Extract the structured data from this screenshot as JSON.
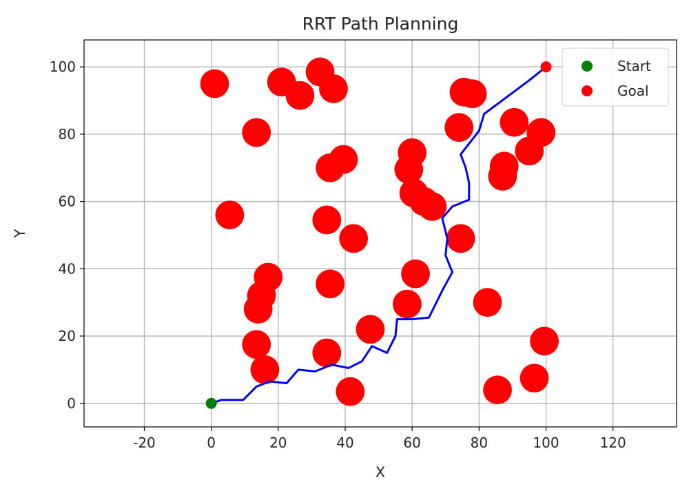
{
  "chart_data": {
    "type": "scatter",
    "title": "RRT Path Planning",
    "xlabel": "X",
    "ylabel": "Y",
    "xlim": [
      -38,
      139
    ],
    "ylim": [
      -7,
      108
    ],
    "xticks": [
      -20,
      0,
      20,
      40,
      60,
      80,
      100,
      120
    ],
    "yticks": [
      0,
      20,
      40,
      60,
      80,
      100
    ],
    "grid": true,
    "legend_position": "top-right",
    "colors": {
      "start": "#008000",
      "goal": "#ff0000",
      "obstacles": "#ff0000",
      "path": "#0000ff",
      "grid": "#b0b0b0"
    },
    "obstacles": {
      "radius": 4.3,
      "centers": [
        [
          1,
          95
        ],
        [
          21,
          95.5
        ],
        [
          26.5,
          91.5
        ],
        [
          32.5,
          98.5
        ],
        [
          36.5,
          93.5
        ],
        [
          13.5,
          80.5
        ],
        [
          39.5,
          72.5
        ],
        [
          35.5,
          70
        ],
        [
          5.5,
          56
        ],
        [
          34.5,
          54.5
        ],
        [
          42.5,
          49
        ],
        [
          17,
          37.5
        ],
        [
          15,
          32
        ],
        [
          14,
          28
        ],
        [
          35.5,
          35.5
        ],
        [
          13.5,
          17.5
        ],
        [
          16,
          10
        ],
        [
          34.5,
          15
        ],
        [
          41.5,
          3.5
        ],
        [
          47.5,
          22
        ],
        [
          60,
          74.5
        ],
        [
          59,
          69.5
        ],
        [
          60.5,
          62.5
        ],
        [
          63.5,
          60
        ],
        [
          66,
          58.5
        ],
        [
          74.5,
          49
        ],
        [
          61,
          38.5
        ],
        [
          58.5,
          29.5
        ],
        [
          82.5,
          30
        ],
        [
          75.5,
          92.5
        ],
        [
          78,
          92
        ],
        [
          74,
          82
        ],
        [
          90.5,
          83.5
        ],
        [
          95,
          75
        ],
        [
          98.5,
          80.5
        ],
        [
          87.5,
          70.5
        ],
        [
          87,
          67.5
        ],
        [
          99.5,
          18.5
        ],
        [
          96.5,
          7.5
        ],
        [
          85.5,
          4
        ]
      ]
    },
    "path": {
      "x": [
        0,
        3,
        9.5,
        13.5,
        17.5,
        22.5,
        26,
        31,
        36,
        41,
        45,
        48,
        52.5,
        55,
        55.5,
        60,
        65,
        69,
        72,
        70,
        70.5,
        69,
        72,
        77,
        77,
        76,
        74.5,
        80,
        81.5,
        95,
        100
      ],
      "y": [
        0,
        1,
        1,
        5,
        6.5,
        6,
        10,
        9.5,
        11.5,
        10.5,
        12.5,
        17,
        15,
        20,
        25,
        25,
        25.5,
        33.5,
        39,
        44,
        49,
        55,
        58.5,
        60.5,
        65.5,
        70,
        74,
        81,
        86,
        96,
        100
      ]
    },
    "legend": [
      {
        "label": "Start",
        "color": "#008000"
      },
      {
        "label": "Goal",
        "color": "#ff0000"
      }
    ],
    "start": {
      "x": 0,
      "y": 0,
      "label": "Start"
    },
    "goal": {
      "x": 100,
      "y": 100,
      "label": "Goal"
    }
  }
}
